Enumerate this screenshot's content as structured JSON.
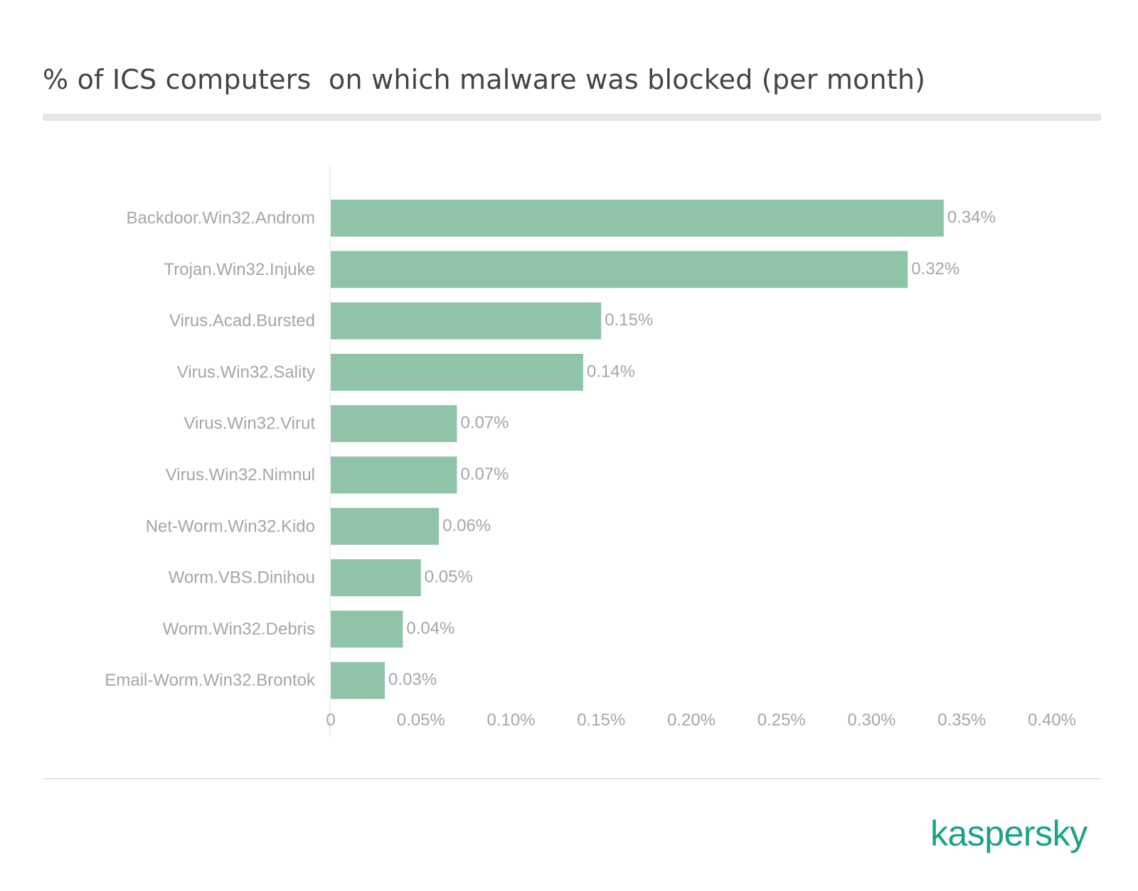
{
  "title": "% of ICS computers  on which malware was blocked (per month)",
  "brand": "kaspersky",
  "colors": {
    "bar": "#90c4a8",
    "label": "#a6a6a6",
    "title": "#444444",
    "axis_line": "#e6e6e6",
    "brand": "#1aa386"
  },
  "chart_data": {
    "type": "bar",
    "orientation": "horizontal",
    "title": "% of ICS computers  on which malware was blocked (per month)",
    "categories": [
      "Backdoor.Win32.Androm",
      "Trojan.Win32.Injuke",
      "Virus.Acad.Bursted",
      "Virus.Win32.Sality",
      "Virus.Win32.Virut",
      "Virus.Win32.Nimnul",
      "Net-Worm.Win32.Kido",
      "Worm.VBS.Dinihou",
      "Worm.Win32.Debris",
      "Email-Worm.Win32.Brontok"
    ],
    "values": [
      0.34,
      0.32,
      0.15,
      0.14,
      0.07,
      0.07,
      0.06,
      0.05,
      0.04,
      0.03
    ],
    "data_labels": [
      "0.34%",
      "0.32%",
      "0.15%",
      "0.14%",
      "0.07%",
      "0.07%",
      "0.06%",
      "0.05%",
      "0.04%",
      "0.03%"
    ],
    "xlim": [
      0,
      0.4
    ],
    "x_ticks": [
      0,
      0.05,
      0.1,
      0.15,
      0.2,
      0.25,
      0.3,
      0.35,
      0.4
    ],
    "x_tick_labels": [
      "0",
      "0.05%",
      "0.10%",
      "0.15%",
      "0.20%",
      "0.25%",
      "0.30%",
      "0.35%",
      "0.40%"
    ],
    "xlabel": "",
    "ylabel": "",
    "grid": false,
    "legend": "none"
  }
}
